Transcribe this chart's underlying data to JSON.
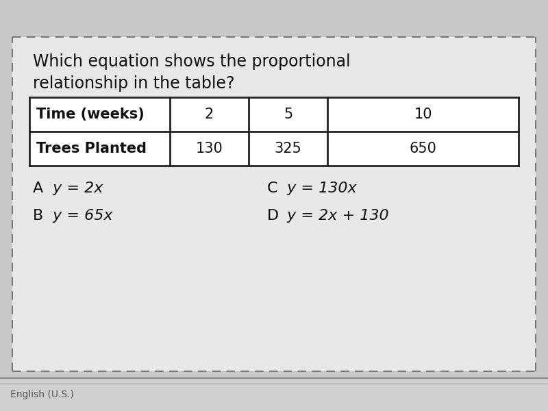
{
  "title_line1": "Which equation shows the proportional",
  "title_line2": "relationship in the table?",
  "table_headers": [
    "Time (weeks)",
    "2",
    "5",
    "10"
  ],
  "table_row2": [
    "Trees Planted",
    "130",
    "325",
    "650"
  ],
  "option_A_letter": "A",
  "option_A_eq": " y = 2x",
  "option_B_letter": "B",
  "option_B_eq": " y = 65x",
  "option_C_letter": "C",
  "option_C_eq": " y = 130x",
  "option_D_letter": "D",
  "option_D_eq": " y = 2x + 130",
  "bg_color": "#c8c8c8",
  "card_color": "#e8e8e8",
  "border_color": "#777777",
  "text_color": "#111111",
  "title_fontsize": 17,
  "table_fontsize": 15,
  "option_fontsize": 16,
  "taskbar_color": "#d0d0d0",
  "taskbar_sep_color": "#888888",
  "taskbar_text": "English (U.S.)",
  "taskbar_text_color": "#555555"
}
